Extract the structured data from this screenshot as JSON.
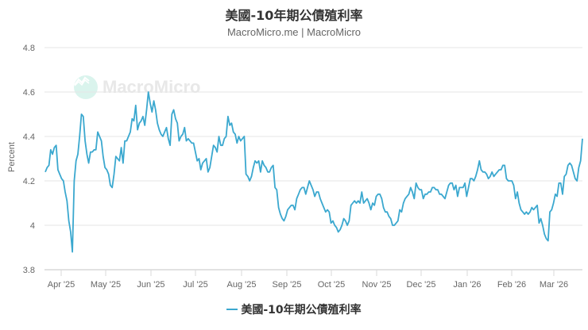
{
  "header": {
    "title": "美國-10年期公債殖利率",
    "subtitle": "MacroMicro.me | MacroMicro"
  },
  "watermark": {
    "text": "MacroMicro",
    "icon": "chart-trend-icon"
  },
  "legend": {
    "label": "美國-10年期公債殖利率",
    "color": "#3ba8cf"
  },
  "chart_data": {
    "type": "line",
    "title": "美國-10年期公債殖利率",
    "subtitle": "MacroMicro.me | MacroMicro",
    "xlabel": "",
    "ylabel": "Percent",
    "ylim": [
      3.8,
      4.8
    ],
    "yticks": [
      "3.8",
      "4",
      "4.2",
      "4.4",
      "4.6",
      "4.8"
    ],
    "xticks": [
      "Apr '25",
      "May '25",
      "Jun '25",
      "Jul '25",
      "Aug '25",
      "Sep '25",
      "Oct '25",
      "Nov '25",
      "Dec '25",
      "Jan '26",
      "Feb '26",
      "Mar '26"
    ],
    "grid": true,
    "legend_position": "bottom",
    "series": [
      {
        "name": "美國-10年期公債殖利率",
        "color": "#3ba8cf",
        "x_range": [
          "2025-03-21",
          "2026-03-31"
        ],
        "values": [
          4.24,
          4.26,
          4.27,
          4.34,
          4.32,
          4.35,
          4.36,
          4.25,
          4.23,
          4.21,
          4.2,
          4.15,
          4.11,
          4.02,
          3.97,
          3.88,
          4.2,
          4.29,
          4.32,
          4.4,
          4.5,
          4.49,
          4.38,
          4.32,
          4.28,
          4.33,
          4.33,
          4.34,
          4.34,
          4.42,
          4.4,
          4.38,
          4.31,
          4.26,
          4.25,
          4.23,
          4.18,
          4.17,
          4.23,
          4.31,
          4.3,
          4.29,
          4.35,
          4.28,
          4.38,
          4.38,
          4.4,
          4.42,
          4.48,
          4.47,
          4.54,
          4.43,
          4.46,
          4.47,
          4.49,
          4.45,
          4.52,
          4.6,
          4.55,
          4.51,
          4.56,
          4.52,
          4.46,
          4.43,
          4.41,
          4.4,
          4.42,
          4.44,
          4.39,
          4.36,
          4.5,
          4.52,
          4.48,
          4.46,
          4.38,
          4.4,
          4.41,
          4.44,
          4.38,
          4.39,
          4.38,
          4.37,
          4.37,
          4.33,
          4.29,
          4.3,
          4.25,
          4.28,
          4.29,
          4.3,
          4.24,
          4.26,
          4.31,
          4.36,
          4.35,
          4.33,
          4.4,
          4.36,
          4.36,
          4.39,
          4.4,
          4.49,
          4.45,
          4.46,
          4.42,
          4.41,
          4.37,
          4.4,
          4.38,
          4.39,
          4.4,
          4.23,
          4.22,
          4.2,
          4.22,
          4.26,
          4.29,
          4.28,
          4.29,
          4.24,
          4.29,
          4.27,
          4.26,
          4.24,
          4.24,
          4.26,
          4.27,
          4.17,
          4.16,
          4.08,
          4.05,
          4.03,
          4.02,
          4.04,
          4.07,
          4.08,
          4.09,
          4.09,
          4.07,
          4.12,
          4.14,
          4.16,
          4.17,
          4.17,
          4.14,
          4.17,
          4.2,
          4.18,
          4.16,
          4.13,
          4.15,
          4.15,
          4.12,
          4.1,
          4.08,
          4.06,
          4.07,
          4.06,
          4.01,
          4.02,
          4.0,
          3.99,
          3.97,
          3.98,
          4.0,
          4.03,
          4.02,
          4.0,
          4.02,
          4.09,
          4.1,
          4.11,
          4.1,
          4.11,
          4.1,
          4.15,
          4.1,
          4.11,
          4.12,
          4.1,
          4.07,
          4.1,
          4.09,
          4.13,
          4.14,
          4.14,
          4.12,
          4.08,
          4.06,
          4.06,
          4.04,
          4.03,
          4.0,
          4.0,
          4.01,
          4.02,
          4.07,
          4.06,
          4.1,
          4.12,
          4.13,
          4.14,
          4.17,
          4.15,
          4.12,
          4.19,
          4.17,
          4.16,
          4.16,
          4.12,
          4.14,
          4.14,
          4.15,
          4.15,
          4.17,
          4.17,
          4.16,
          4.16,
          4.14,
          4.14,
          4.13,
          4.12,
          4.15,
          4.18,
          4.19,
          4.19,
          4.16,
          4.18,
          4.13,
          4.17,
          4.17,
          4.17,
          4.19,
          4.13,
          4.17,
          4.21,
          4.21,
          4.2,
          4.22,
          4.25,
          4.29,
          4.25,
          4.24,
          4.24,
          4.23,
          4.21,
          4.22,
          4.24,
          4.22,
          4.23,
          4.24,
          4.25,
          4.25,
          4.27,
          4.27,
          4.21,
          4.2,
          4.2,
          4.2,
          4.18,
          4.12,
          4.15,
          4.1,
          4.07,
          4.06,
          4.05,
          4.06,
          4.05,
          4.06,
          4.08,
          4.07,
          4.08,
          4.09,
          4.01,
          4.03,
          4.0,
          3.96,
          3.94,
          3.93,
          4.06,
          4.07,
          4.1,
          4.14,
          4.13,
          4.19,
          4.19,
          4.14,
          4.22,
          4.23,
          4.27,
          4.28,
          4.27,
          4.24,
          4.21,
          4.2,
          4.26,
          4.29,
          4.39
        ]
      }
    ]
  }
}
